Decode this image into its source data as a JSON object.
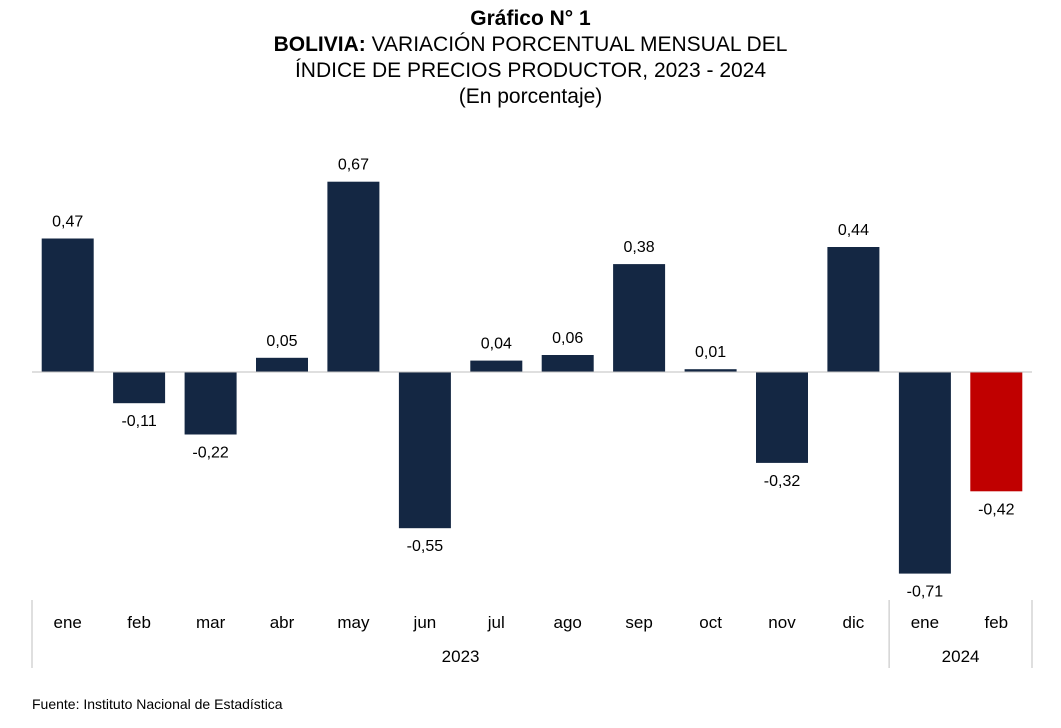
{
  "header": {
    "figure_label": "Gráfico N° 1",
    "title_bold": "BOLIVIA:",
    "title_line1_rest": " VARIACIÓN PORCENTUAL MENSUAL DEL",
    "title_line2": "ÍNDICE DE PRECIOS PRODUCTOR, 2023 - 2024",
    "subtitle": "(En porcentaje)"
  },
  "footer": {
    "source": "Fuente: Instituto Nacional de Estadística"
  },
  "colors": {
    "bar": "#142743",
    "highlight": "#c00000",
    "axis": "#bfbfbf"
  },
  "chart_data": {
    "type": "bar",
    "title": "BOLIVIA: VARIACIÓN PORCENTUAL MENSUAL DEL ÍNDICE DE PRECIOS PRODUCTOR, 2023 - 2024",
    "subtitle": "(En porcentaje)",
    "categories": [
      "ene",
      "feb",
      "mar",
      "abr",
      "may",
      "jun",
      "jul",
      "ago",
      "sep",
      "oct",
      "nov",
      "dic",
      "ene",
      "feb"
    ],
    "groups": [
      {
        "label": "2023",
        "count": 12
      },
      {
        "label": "2024",
        "count": 2
      }
    ],
    "values": [
      0.47,
      -0.11,
      -0.22,
      0.05,
      0.67,
      -0.55,
      0.04,
      0.06,
      0.38,
      0.01,
      -0.32,
      0.44,
      -0.71,
      -0.42
    ],
    "data_labels": [
      "0,47",
      "-0,11",
      "-0,22",
      "0,05",
      "0,67",
      "-0,55",
      "0,04",
      "0,06",
      "0,38",
      "0,01",
      "-0,32",
      "0,44",
      "-0,71",
      "-0,42"
    ],
    "highlight_index": 13,
    "ylim": [
      -0.75,
      0.85
    ],
    "grid": false,
    "legend": "none"
  }
}
